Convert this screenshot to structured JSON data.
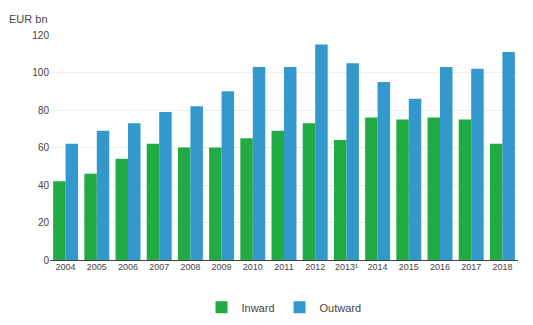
{
  "chart_data": {
    "type": "bar",
    "ylabel": "EUR bn",
    "categories": [
      "2004",
      "2005",
      "2006",
      "2007",
      "2008",
      "2009",
      "2010",
      "2011",
      "2012",
      "2013¹",
      "2014",
      "2015",
      "2016",
      "2017",
      "2018"
    ],
    "series": [
      {
        "name": "Inward",
        "color": "#22aa44",
        "values": [
          42,
          46,
          54,
          62,
          60,
          60,
          65,
          69,
          73,
          64,
          76,
          75,
          76,
          75,
          62
        ]
      },
      {
        "name": "Outward",
        "color": "#3399cc",
        "values": [
          62,
          69,
          73,
          79,
          82,
          90,
          103,
          103,
          115,
          105,
          95,
          86,
          103,
          102,
          111
        ]
      }
    ],
    "ylim": [
      0,
      120
    ],
    "yticks": [
      0,
      20,
      40,
      60,
      80,
      100,
      120
    ],
    "grid": true,
    "legend": "bottom"
  }
}
